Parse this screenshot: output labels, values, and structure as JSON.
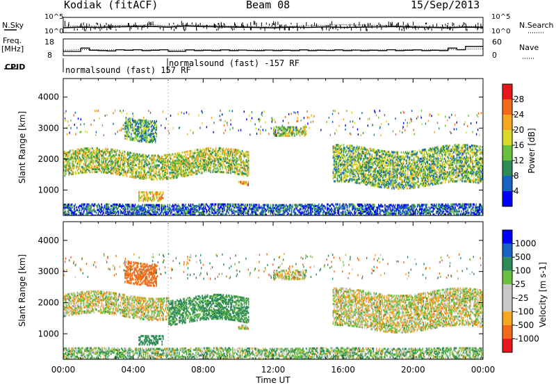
{
  "header": {
    "radar": "Kodiak (fitACF)",
    "beam": "Beam 08",
    "date": "15/Sep/2013"
  },
  "labels": {
    "n_sky": "N.Sky",
    "n_search": "N.Search",
    "freq_line1": "Freq.",
    "freq_line2": "[MHz]",
    "nave": "Nave",
    "cpid": "CPID",
    "cpid_seg1": "normalsound (fast) 157 RF",
    "cpid_seg2": "normalsound (fast) -157 RF",
    "noise_left_ticks": [
      "10^5",
      "10^0"
    ],
    "noise_right_ticks": [
      "10^5",
      "10^0"
    ],
    "freq_ticks": [
      "18",
      "8"
    ],
    "nave_ticks": [
      "60",
      "0"
    ]
  },
  "colors": {
    "power_scale": [
      "#0000ff",
      "#1565c0",
      "#2e8b57",
      "#6abf3f",
      "#d9d92a",
      "#f5a623",
      "#f06a1a",
      "#e8171b"
    ],
    "velocity_scale": [
      "#e8171b",
      "#f06a1a",
      "#f5a623",
      "#c8c8c8",
      "#c8c8c8",
      "#6abf3f",
      "#2e8b57",
      "#1565c0",
      "#0000ff"
    ]
  },
  "chart_data": [
    {
      "type": "line",
      "panel": "noise",
      "left_ticks": [
        "10^5",
        "10^0"
      ],
      "right_ticks": [
        "10^5",
        "10^0"
      ],
      "series": [
        {
          "name": "N.Sky",
          "values": [
            1.6,
            1.8,
            1.7,
            1.9,
            2.0,
            2.1,
            1.8,
            2.2,
            2.0,
            1.9,
            1.8,
            1.7,
            1.6,
            1.8,
            1.7,
            1.9,
            1.7,
            1.8,
            1.9,
            2.0,
            1.8,
            1.7,
            1.6,
            1.8,
            1.7
          ]
        },
        {
          "name": "N.Search",
          "values": [
            2.0,
            2.2,
            2.1,
            2.4,
            2.3,
            2.6,
            2.2,
            2.5,
            2.4,
            2.3,
            2.1,
            2.0,
            1.9,
            2.1,
            2.3,
            2.4,
            2.6,
            2.5,
            2.4,
            2.3,
            2.2,
            2.0,
            1.9,
            2.1,
            2.0
          ]
        }
      ]
    },
    {
      "type": "line",
      "panel": "frequency",
      "ylabel": "Freq. [MHz]",
      "ylim": [
        8,
        18
      ],
      "x_hours": [
        0,
        0.5,
        1,
        1.5,
        2,
        2.5,
        3,
        3.5,
        4,
        4.5,
        5,
        5.5,
        6,
        6.5,
        7,
        7.5,
        8,
        8.5,
        9,
        9.5,
        10,
        10.5,
        11,
        11.5,
        12,
        12.5,
        13,
        13.5,
        14,
        14.5,
        15,
        15.5,
        16,
        16.5,
        17,
        17.5,
        18,
        18.5,
        19,
        19.5,
        20,
        20.5,
        21,
        21.5,
        22,
        22.5,
        23,
        23.5,
        24
      ],
      "series": [
        {
          "name": "Freq.",
          "values": [
            10.5,
            10.5,
            12.5,
            11.2,
            11.0,
            10.8,
            11.5,
            11.2,
            11.5,
            11.0,
            11.2,
            11.5,
            10.6,
            10.6,
            11.4,
            11.0,
            11.2,
            11.0,
            11.4,
            11.0,
            11.3,
            11.1,
            11.0,
            11.3,
            11.0,
            11.2,
            11.0,
            11.4,
            11.0,
            11.2,
            11.1,
            11.4,
            11.0,
            11.3,
            11.0,
            11.2,
            11.0,
            11.5,
            11.0,
            11.2,
            11.4,
            11.0,
            11.2,
            11.0,
            12.5,
            11.5,
            13.5,
            13.5,
            13.5
          ]
        },
        {
          "name": "Nave",
          "values": [
            20,
            20,
            22,
            21,
            21,
            20,
            21,
            20,
            21,
            20,
            21,
            21,
            20,
            20,
            21,
            20,
            21,
            20,
            21,
            20,
            21,
            20,
            20,
            21,
            20,
            21,
            20,
            21,
            20,
            21,
            20,
            21,
            20,
            21,
            20,
            21,
            20,
            21,
            20,
            21,
            21,
            20,
            21,
            20,
            22,
            21,
            24,
            24,
            24
          ]
        }
      ]
    },
    {
      "type": "heatmap",
      "panel": "power",
      "xlabel": "Time UT",
      "ylabel": "Slant Range [km]",
      "colorbar_label": "Power [dB]",
      "colorbar_ticks": [
        4,
        8,
        12,
        16,
        20,
        24,
        28
      ],
      "x_ticks": [
        "00:00",
        "04:00",
        "08:00",
        "12:00",
        "16:00",
        "20:00",
        "00:00"
      ],
      "y_ticks": [
        1000,
        2000,
        3000,
        4000
      ],
      "xlim_hours": [
        0,
        24
      ],
      "ylim_km": [
        180,
        4600
      ],
      "echo_regions": [
        {
          "t0": 0.0,
          "t1": 10.6,
          "r0": 1500,
          "r1": 2300,
          "power": 16
        },
        {
          "t0": 3.5,
          "t1": 5.3,
          "r0": 2700,
          "r1": 3400,
          "power": 12
        },
        {
          "t0": 4.3,
          "t1": 5.7,
          "r0": 700,
          "r1": 1000,
          "power": 20
        },
        {
          "t0": 10.0,
          "t1": 10.6,
          "r0": 1200,
          "r1": 1300,
          "power": 24
        },
        {
          "t0": 12.0,
          "t1": 13.9,
          "r0": 2800,
          "r1": 3100,
          "power": 16
        },
        {
          "t0": 15.4,
          "t1": 24.0,
          "r0": 1200,
          "r1": 2400,
          "power": 14
        },
        {
          "t0": 0.0,
          "t1": 24.0,
          "r0": 200,
          "r1": 600,
          "power": 6
        }
      ]
    },
    {
      "type": "heatmap",
      "panel": "velocity",
      "xlabel": "Time UT",
      "ylabel": "Slant Range [km]",
      "colorbar_label": "Velocity [m s-1]",
      "colorbar_ticks": [
        "1000",
        "500",
        "100",
        "25",
        "-25",
        "-100",
        "-500",
        "-1000"
      ],
      "x_ticks": [
        "00:00",
        "04:00",
        "08:00",
        "12:00",
        "16:00",
        "20:00",
        "00:00"
      ],
      "y_ticks": [
        1000,
        2000,
        3000,
        4000
      ],
      "xlim_hours": [
        0,
        24
      ],
      "ylim_km": [
        180,
        4600
      ],
      "echo_regions": [
        {
          "t0": 0.0,
          "t1": 6.0,
          "r0": 1600,
          "r1": 2300,
          "velocity": 0
        },
        {
          "t0": 3.5,
          "t1": 5.3,
          "r0": 2700,
          "r1": 3400,
          "velocity": -200
        },
        {
          "t0": 4.3,
          "t1": 5.7,
          "r0": 700,
          "r1": 1000,
          "velocity": 200
        },
        {
          "t0": 6.0,
          "t1": 10.6,
          "r0": 1400,
          "r1": 2200,
          "velocity": 150
        },
        {
          "t0": 10.0,
          "t1": 10.6,
          "r0": 1200,
          "r1": 1300,
          "velocity": 0
        },
        {
          "t0": 12.0,
          "t1": 13.9,
          "r0": 2800,
          "r1": 3100,
          "velocity": 0
        },
        {
          "t0": 15.4,
          "t1": 24.0,
          "r0": 1200,
          "r1": 2400,
          "velocity": 0
        },
        {
          "t0": 0.0,
          "t1": 24.0,
          "r0": 200,
          "r1": 600,
          "velocity": 60
        }
      ]
    }
  ]
}
